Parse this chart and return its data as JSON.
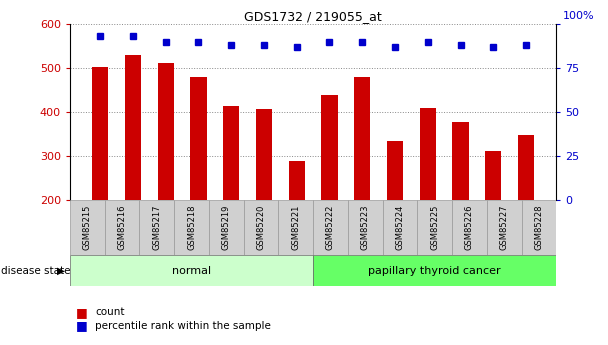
{
  "title": "GDS1732 / 219055_at",
  "samples": [
    "GSM85215",
    "GSM85216",
    "GSM85217",
    "GSM85218",
    "GSM85219",
    "GSM85220",
    "GSM85221",
    "GSM85222",
    "GSM85223",
    "GSM85224",
    "GSM85225",
    "GSM85226",
    "GSM85227",
    "GSM85228"
  ],
  "counts": [
    502,
    530,
    512,
    480,
    415,
    408,
    290,
    440,
    480,
    335,
    410,
    378,
    312,
    347
  ],
  "percentiles": [
    93,
    93,
    90,
    90,
    88,
    88,
    87,
    90,
    90,
    87,
    90,
    88,
    87,
    88
  ],
  "groups": [
    "normal",
    "normal",
    "normal",
    "normal",
    "normal",
    "normal",
    "normal",
    "papillary thyroid cancer",
    "papillary thyroid cancer",
    "papillary thyroid cancer",
    "papillary thyroid cancer",
    "papillary thyroid cancer",
    "papillary thyroid cancer",
    "papillary thyroid cancer"
  ],
  "ylim_left": [
    200,
    600
  ],
  "ylim_right": [
    0,
    100
  ],
  "yticks_left": [
    200,
    300,
    400,
    500,
    600
  ],
  "yticks_right": [
    0,
    25,
    50,
    75,
    100
  ],
  "bar_color": "#cc0000",
  "dot_color": "#0000cc",
  "normal_color": "#ccffcc",
  "cancer_color": "#66ff66",
  "grid_color": "#888888",
  "label_count": "count",
  "label_percentile": "percentile rank within the sample",
  "disease_state_label": "disease state",
  "normal_label": "normal",
  "cancer_label": "papillary thyroid cancer",
  "xlabel_bg": "#d0d0d0"
}
